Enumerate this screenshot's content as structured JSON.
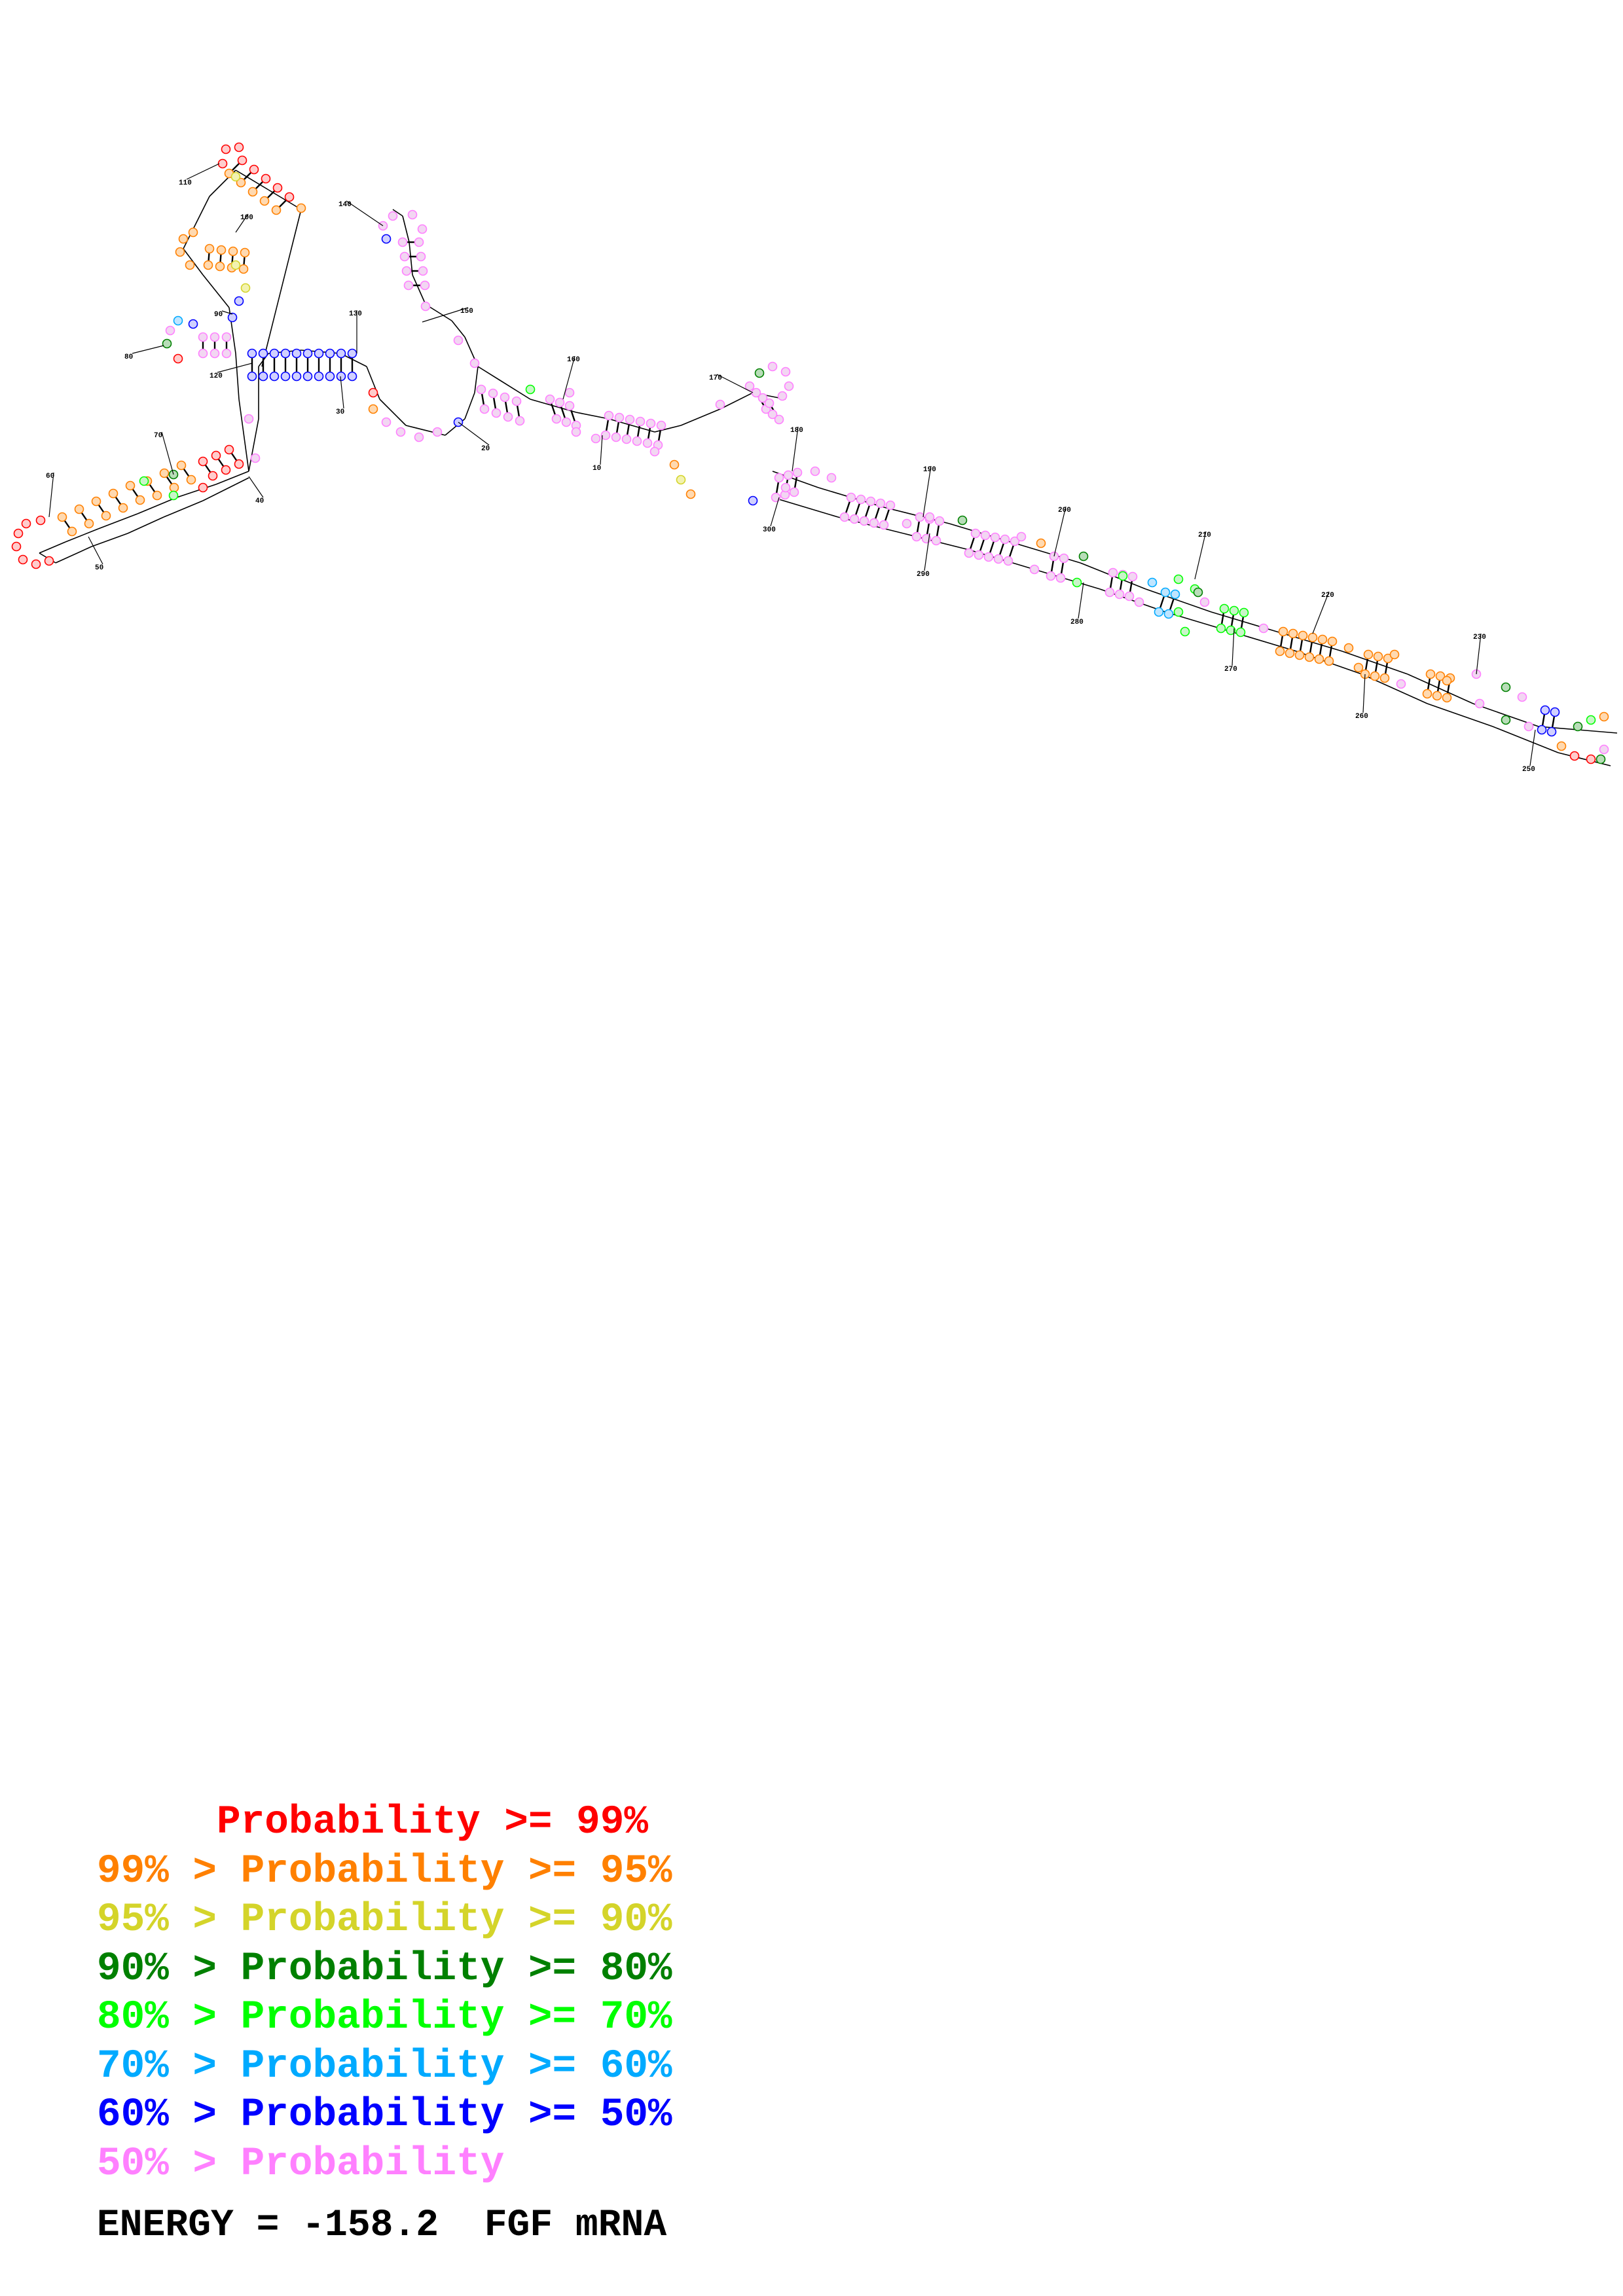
{
  "structure": {
    "sequence_name": "FGF mRNA",
    "position_labels": [
      "10",
      "20",
      "30",
      "40",
      "50",
      "60",
      "70",
      "80",
      "90",
      "100",
      "110",
      "120",
      "130",
      "140",
      "150",
      "160",
      "170",
      "180",
      "190",
      "200",
      "210",
      "220",
      "230",
      "250",
      "260",
      "270",
      "280",
      "290",
      "300"
    ],
    "nucleotide_color_classes": [
      "ge99",
      "95to99",
      "90to95",
      "80to90",
      "70to80",
      "60to70",
      "50to60",
      "lt50"
    ]
  },
  "legend": {
    "rows": [
      {
        "text": "     Probability >= 99%",
        "color": "#ff0000"
      },
      {
        "text": "99% > Probability >= 95%",
        "color": "#ff8000"
      },
      {
        "text": "95% > Probability >= 90%",
        "color": "#d4d42a"
      },
      {
        "text": "90% > Probability >= 80%",
        "color": "#008000"
      },
      {
        "text": "80% > Probability >= 70%",
        "color": "#00ff00"
      },
      {
        "text": "70% > Probability >= 60%",
        "color": "#00aaff"
      },
      {
        "text": "60% > Probability >= 50%",
        "color": "#0000ff"
      },
      {
        "text": "50% > Probability",
        "color": "#ff80ff"
      }
    ]
  },
  "footer": {
    "energy_text": "ENERGY = -158.2  FGF mRNA"
  },
  "colors": {
    "ge99": "#ff0000",
    "95to99": "#ff8000",
    "90to95": "#d4d42a",
    "80to90": "#008000",
    "70to80": "#00ff00",
    "60to70": "#00aaff",
    "50to60": "#0000ff",
    "lt50": "#ff80ff"
  }
}
